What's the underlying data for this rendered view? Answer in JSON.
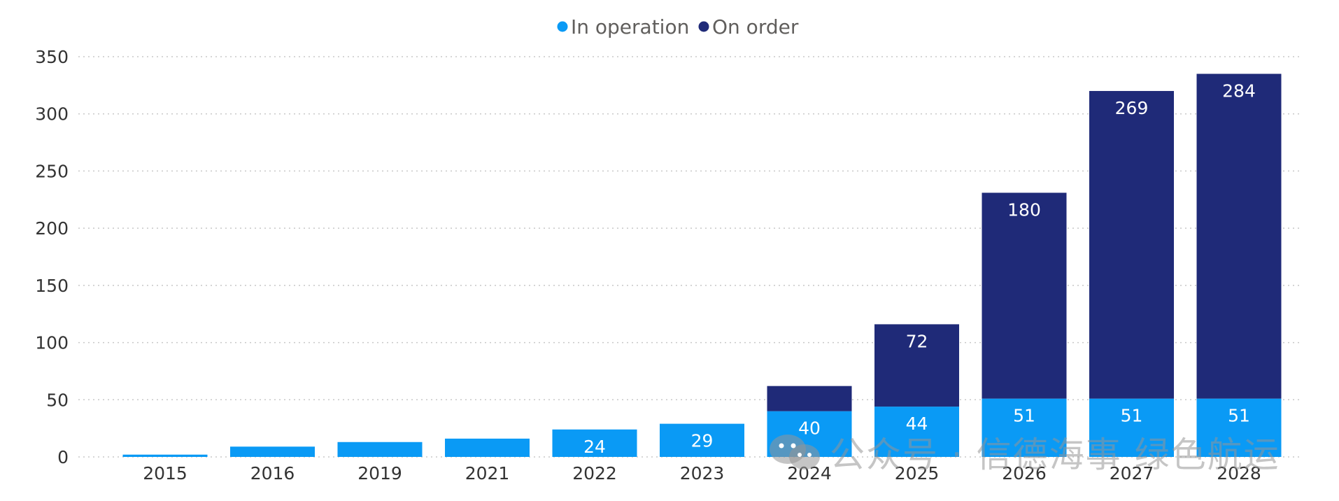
{
  "chart_data": {
    "type": "bar",
    "stacked": true,
    "title": "",
    "xlabel": "",
    "ylabel": "",
    "categories": [
      "2015",
      "2016",
      "2019",
      "2021",
      "2022",
      "2023",
      "2024",
      "2025",
      "2026",
      "2027",
      "2028"
    ],
    "series": [
      {
        "name": "In operation",
        "color": "#0a9af5",
        "values": [
          2,
          9,
          13,
          16,
          24,
          29,
          40,
          44,
          51,
          51,
          51
        ]
      },
      {
        "name": "On order",
        "color": "#1f2a78",
        "values": [
          0,
          0,
          0,
          0,
          0,
          0,
          22,
          72,
          180,
          269,
          284
        ]
      }
    ],
    "data_labels": {
      "In operation": [
        "",
        "",
        "",
        "",
        "24",
        "29",
        "40",
        "44",
        "51",
        "51",
        "51"
      ],
      "On order": [
        "",
        "",
        "",
        "",
        "",
        "",
        "",
        "72",
        "180",
        "269",
        "284"
      ]
    },
    "ylim": [
      0,
      350
    ],
    "yticks": [
      0,
      50,
      100,
      150,
      200,
      250,
      300,
      350
    ],
    "grid": true,
    "legend_position": "top-center"
  },
  "watermark": {
    "icon": "wechat-icon",
    "text": "公众号 · 信德海事 绿色航运"
  }
}
